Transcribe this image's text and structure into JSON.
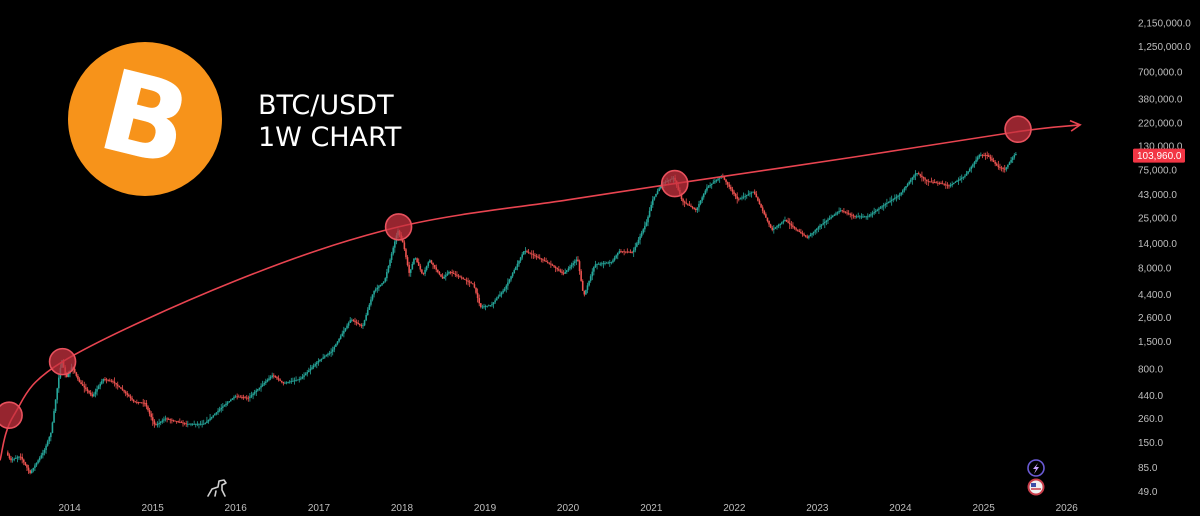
{
  "header": {
    "logo_icon": "bitcoin-icon",
    "logo_glyph": "B",
    "title_line1": "BTC/USDT",
    "title_line2": "1W CHART"
  },
  "colors": {
    "background": "#000000",
    "logo": "#f7931a",
    "up_candle": "#26a69a",
    "down_candle": "#ef5350",
    "trend_curve": "#e84450",
    "marker_fill": "#c8323f",
    "price_tag": "#f23645",
    "axis_text": "#bfbfbf"
  },
  "icons": [
    "tradingview-dino-icon",
    "lightning-icon",
    "flag-icon"
  ],
  "chart_data": {
    "type": "candlestick",
    "title": "BTC/USDT",
    "subtitle": "1W CHART",
    "x_axis": {
      "type": "time",
      "ticks": [
        "2014",
        "2015",
        "2016",
        "2017",
        "2018",
        "2019",
        "2020",
        "2021",
        "2022",
        "2023",
        "2024",
        "2025",
        "2026"
      ],
      "range": [
        "2013-03-01",
        "2026-09-01"
      ]
    },
    "y_axis": {
      "scale": "log",
      "position": "right",
      "range": [
        37,
        3300000
      ],
      "ticks": [
        49.0,
        85.0,
        150.0,
        260.0,
        440.0,
        800.0,
        1500.0,
        2600.0,
        4400.0,
        8000.0,
        14000.0,
        25000.0,
        43000.0,
        75000.0,
        130000.0,
        220000.0,
        380000.0,
        700000.0,
        1250000.0,
        2150000.0
      ],
      "tick_labels": [
        "49.0",
        "85.0",
        "150.0",
        "260.0",
        "440.0",
        "800.0",
        "1,500.0",
        "2,600.0",
        "4,400.0",
        "8,000.0",
        "14,000.0",
        "25,000.0",
        "43,000.0",
        "75,000.0",
        "130,000.0",
        "220,000.0",
        "380,000.0",
        "700,000.0",
        "1,250,000.0",
        "2,150,000.0"
      ]
    },
    "last_price": {
      "value": 103960.0,
      "label": "103,960.0"
    },
    "price_path": [
      [
        "2013-04-01",
        120
      ],
      [
        "2013-04-20",
        100
      ],
      [
        "2013-06-01",
        110
      ],
      [
        "2013-07-15",
        75
      ],
      [
        "2013-09-15",
        125
      ],
      [
        "2013-10-15",
        190
      ],
      [
        "2013-11-15",
        600
      ],
      [
        "2013-12-01",
        1000
      ],
      [
        "2013-12-20",
        650
      ],
      [
        "2014-01-15",
        850
      ],
      [
        "2014-02-15",
        600
      ],
      [
        "2014-04-15",
        430
      ],
      [
        "2014-06-01",
        640
      ],
      [
        "2014-07-15",
        600
      ],
      [
        "2014-09-01",
        480
      ],
      [
        "2014-10-15",
        380
      ],
      [
        "2014-12-01",
        370
      ],
      [
        "2015-01-15",
        220
      ],
      [
        "2015-03-01",
        260
      ],
      [
        "2015-06-01",
        230
      ],
      [
        "2015-08-20",
        230
      ],
      [
        "2015-11-01",
        330
      ],
      [
        "2016-01-01",
        430
      ],
      [
        "2016-03-01",
        415
      ],
      [
        "2016-06-15",
        700
      ],
      [
        "2016-08-01",
        580
      ],
      [
        "2016-10-15",
        640
      ],
      [
        "2017-01-01",
        960
      ],
      [
        "2017-03-01",
        1200
      ],
      [
        "2017-05-25",
        2500
      ],
      [
        "2017-07-15",
        2100
      ],
      [
        "2017-09-01",
        4700
      ],
      [
        "2017-10-20",
        6000
      ],
      [
        "2017-12-17",
        19000
      ],
      [
        "2018-01-10",
        14000
      ],
      [
        "2018-02-06",
        7000
      ],
      [
        "2018-03-01",
        10500
      ],
      [
        "2018-04-06",
        6800
      ],
      [
        "2018-05-05",
        9700
      ],
      [
        "2018-07-01",
        6300
      ],
      [
        "2018-08-01",
        7400
      ],
      [
        "2018-11-15",
        5500
      ],
      [
        "2018-12-15",
        3300
      ],
      [
        "2019-02-01",
        3450
      ],
      [
        "2019-04-01",
        5000
      ],
      [
        "2019-06-26",
        12000
      ],
      [
        "2019-09-01",
        10000
      ],
      [
        "2019-10-25",
        8600
      ],
      [
        "2019-12-15",
        7000
      ],
      [
        "2020-02-15",
        10000
      ],
      [
        "2020-03-13",
        4200
      ],
      [
        "2020-05-01",
        8700
      ],
      [
        "2020-07-15",
        9200
      ],
      [
        "2020-08-15",
        11800
      ],
      [
        "2020-10-15",
        11500
      ],
      [
        "2020-12-15",
        23000
      ],
      [
        "2021-01-10",
        38000
      ],
      [
        "2021-02-20",
        55000
      ],
      [
        "2021-04-14",
        63000
      ],
      [
        "2021-05-20",
        37000
      ],
      [
        "2021-07-20",
        30000
      ],
      [
        "2021-09-05",
        50000
      ],
      [
        "2021-11-10",
        66000
      ],
      [
        "2022-01-20",
        38000
      ],
      [
        "2022-03-30",
        46000
      ],
      [
        "2022-06-18",
        19000
      ],
      [
        "2022-08-15",
        24000
      ],
      [
        "2022-09-30",
        19500
      ],
      [
        "2022-11-21",
        16000
      ],
      [
        "2023-01-15",
        21000
      ],
      [
        "2023-04-15",
        30000
      ],
      [
        "2023-06-15",
        26000
      ],
      [
        "2023-08-15",
        26000
      ],
      [
        "2023-10-30",
        34500
      ],
      [
        "2023-12-31",
        42500
      ],
      [
        "2024-03-14",
        71000
      ],
      [
        "2024-05-01",
        58000
      ],
      [
        "2024-07-05",
        55000
      ],
      [
        "2024-08-05",
        52000
      ],
      [
        "2024-10-15",
        66000
      ],
      [
        "2024-12-17",
        106000
      ],
      [
        "2025-01-20",
        105000
      ],
      [
        "2025-03-10",
        80000
      ],
      [
        "2025-04-08",
        76000
      ],
      [
        "2025-05-22",
        108000
      ]
    ],
    "trend_curve": {
      "label": "",
      "points": [
        [
          "2013-03-01",
          100
        ],
        [
          "2013-05-01",
          280
        ],
        [
          "2013-12-01",
          950
        ],
        [
          "2016-01-01",
          6000
        ],
        [
          "2017-12-17",
          20500
        ],
        [
          "2020-01-01",
          38000
        ],
        [
          "2021-04-14",
          55000
        ],
        [
          "2023-06-01",
          100000
        ],
        [
          "2025-06-01",
          180000
        ],
        [
          "2026-03-01",
          210000
        ]
      ],
      "arrow": true
    },
    "peak_markers": [
      {
        "date": "2013-04-10",
        "value": 280
      },
      {
        "date": "2013-12-01",
        "value": 950
      },
      {
        "date": "2017-12-17",
        "value": 20500
      },
      {
        "date": "2021-04-14",
        "value": 55000
      },
      {
        "date": "2025-06-01",
        "value": 190000
      }
    ],
    "grid": false,
    "legend": "none"
  }
}
